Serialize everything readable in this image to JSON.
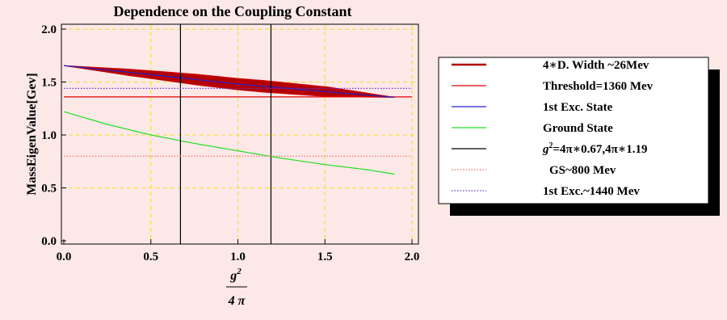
{
  "page": {
    "background": "#fde8e8",
    "plot_background": "#fde8e8"
  },
  "chart_data": {
    "type": "line",
    "title": "Dependence on the Coupling Constant",
    "ylabel": "MassEigenValue[Gev]",
    "xlabel": {
      "numerator": "g",
      "numerator_sup": "2",
      "denominator": "4 π"
    },
    "xlim": [
      0,
      2.0
    ],
    "ylim": [
      0,
      2.0
    ],
    "xticks": [
      "0.0",
      "0.5",
      "1.0",
      "1.5",
      "2.0"
    ],
    "yticks": [
      "0.0",
      "0.5",
      "1.0",
      "1.5",
      "2.0"
    ],
    "grid": "dashed-yellow at major ticks",
    "legend_placement": "right",
    "series": [
      {
        "name": "4∗D. Width ~26Mev",
        "color": "#b40000",
        "style": "band",
        "x": [
          0.0,
          1.9
        ],
        "y_center": [
          1.655,
          1.355
        ],
        "half_width": [
          0.0,
          0.03,
          0.05,
          0.055,
          0.045,
          0.0
        ]
      },
      {
        "name": "Threshold=1360 Mev",
        "color": "#e00000",
        "style": "solid",
        "x": [
          0.0,
          2.0
        ],
        "y": [
          1.36,
          1.36
        ]
      },
      {
        "name": "1st Exc. State",
        "color": "#2222cc",
        "style": "solid",
        "x": [
          0.0,
          0.5,
          1.0,
          1.5,
          1.9
        ],
        "y": [
          1.655,
          1.57,
          1.48,
          1.41,
          1.355
        ]
      },
      {
        "name": "Ground State",
        "color": "#22dd22",
        "style": "solid",
        "x": [
          0.0,
          0.25,
          0.5,
          0.75,
          1.0,
          1.25,
          1.5,
          1.75,
          1.9
        ],
        "y": [
          1.22,
          1.1,
          1.0,
          0.92,
          0.85,
          0.78,
          0.72,
          0.67,
          0.63
        ]
      },
      {
        "name": "g2=4π∗0.67,4π∗1.19",
        "color": "#000000",
        "style": "vertical",
        "x": [
          0.67,
          1.19
        ]
      },
      {
        "name": "GS~800 Mev",
        "color": "#ff6666",
        "style": "dotted",
        "x": [
          0.0,
          2.0
        ],
        "y": [
          0.8,
          0.8
        ]
      },
      {
        "name": "1st Exc.~1440 Mev",
        "color": "#6633cc",
        "style": "dotted",
        "x": [
          0.0,
          2.0
        ],
        "y": [
          1.44,
          1.44
        ]
      }
    ],
    "legend_labels": {
      "width": "4∗D. Width ~26Mev",
      "threshold": "Threshold=1360 Mev",
      "first_exc": "1st Exc. State",
      "ground": "Ground State",
      "coupling_g": "g",
      "coupling_sup": "2",
      "coupling_rest": "=4π∗0.67,4π∗1.19",
      "gs_800": "GS~800 Mev",
      "exc_1440": "1st Exc.~1440 Mev"
    }
  }
}
